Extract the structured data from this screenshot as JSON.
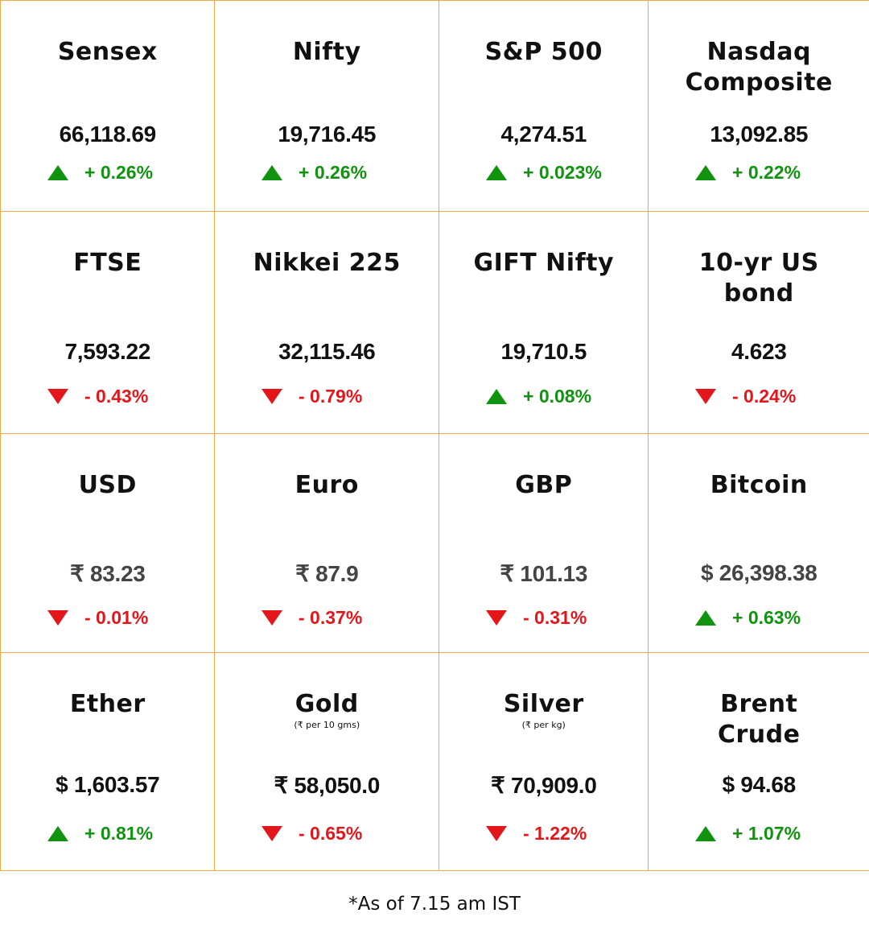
{
  "colors": {
    "border": "#f2a94a",
    "up": "#109410",
    "down": "#e3161b"
  },
  "cells": [
    {
      "name": "Sensex",
      "unit": "",
      "value": "66,118.69",
      "change": "+ 0.26%",
      "direction": "up"
    },
    {
      "name": "Nifty",
      "unit": "",
      "value": "19,716.45",
      "change": "+ 0.26%",
      "direction": "up"
    },
    {
      "name": "S&P 500",
      "unit": "",
      "value": "4,274.51",
      "change": "+ 0.023%",
      "direction": "up"
    },
    {
      "name": "Nasdaq Composite",
      "unit": "",
      "value": "13,092.85",
      "change": "+ 0.22%",
      "direction": "up"
    },
    {
      "name": "FTSE",
      "unit": "",
      "value": "7,593.22",
      "change": "- 0.43%",
      "direction": "down"
    },
    {
      "name": "Nikkei 225",
      "unit": "",
      "value": "32,115.46",
      "change": "- 0.79%",
      "direction": "down"
    },
    {
      "name": "GIFT Nifty",
      "unit": "",
      "value": "19,710.5",
      "change": "+ 0.08%",
      "direction": "up"
    },
    {
      "name": "10-yr US bond",
      "unit": "",
      "value": "4.623",
      "change": "- 0.24%",
      "direction": "down"
    },
    {
      "name": "USD",
      "unit": "",
      "value": "₹ 83.23",
      "change": "- 0.01%",
      "direction": "down"
    },
    {
      "name": "Euro",
      "unit": "",
      "value": "₹ 87.9",
      "change": "- 0.37%",
      "direction": "down"
    },
    {
      "name": "GBP",
      "unit": "",
      "value": "₹ 101.13",
      "change": "- 0.31%",
      "direction": "down"
    },
    {
      "name": "Bitcoin",
      "unit": "",
      "value": "$ 26,398.38",
      "change": "+ 0.63%",
      "direction": "up"
    },
    {
      "name": "Ether",
      "unit": "",
      "value": "$ 1,603.57",
      "change": "+ 0.81%",
      "direction": "up"
    },
    {
      "name": "Gold",
      "unit": "(₹ per 10 gms)",
      "value": "₹ 58,050.0",
      "change": "- 0.65%",
      "direction": "down"
    },
    {
      "name": "Silver",
      "unit": "(₹ per kg)",
      "value": "₹ 70,909.0",
      "change": "- 1.22%",
      "direction": "down"
    },
    {
      "name": "Brent Crude",
      "unit": "",
      "value": "$ 94.68",
      "change": "+ 1.07%",
      "direction": "up"
    }
  ],
  "footer": "*As of 7.15 am IST"
}
